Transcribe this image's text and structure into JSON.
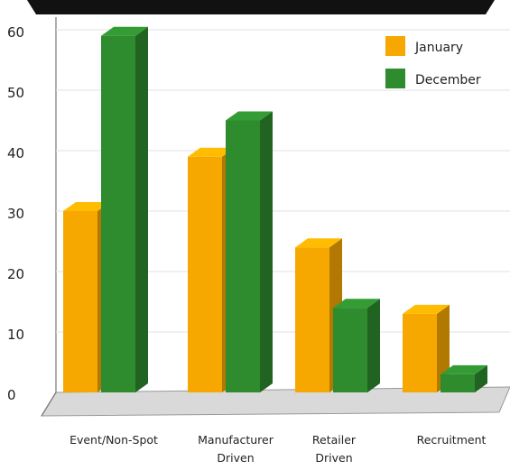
{
  "chart_data": {
    "type": "bar",
    "categories": [
      [
        "Event/Non-Spot"
      ],
      [
        "Manufacturer",
        "Driven"
      ],
      [
        "Retailer",
        "Driven"
      ],
      [
        "Recruitment"
      ]
    ],
    "series": [
      {
        "name": "January",
        "values": [
          30,
          39,
          24,
          13
        ],
        "color": "#f7a800"
      },
      {
        "name": "December",
        "values": [
          59,
          45,
          14,
          3
        ],
        "color": "#2e8b2e"
      }
    ],
    "ylim": [
      0,
      60
    ],
    "yticks": [
      0,
      10,
      20,
      30,
      40,
      50,
      60
    ],
    "grid": true,
    "legend_position": "top-right",
    "title_bar_color": "#111111",
    "style": "3d-bars"
  }
}
